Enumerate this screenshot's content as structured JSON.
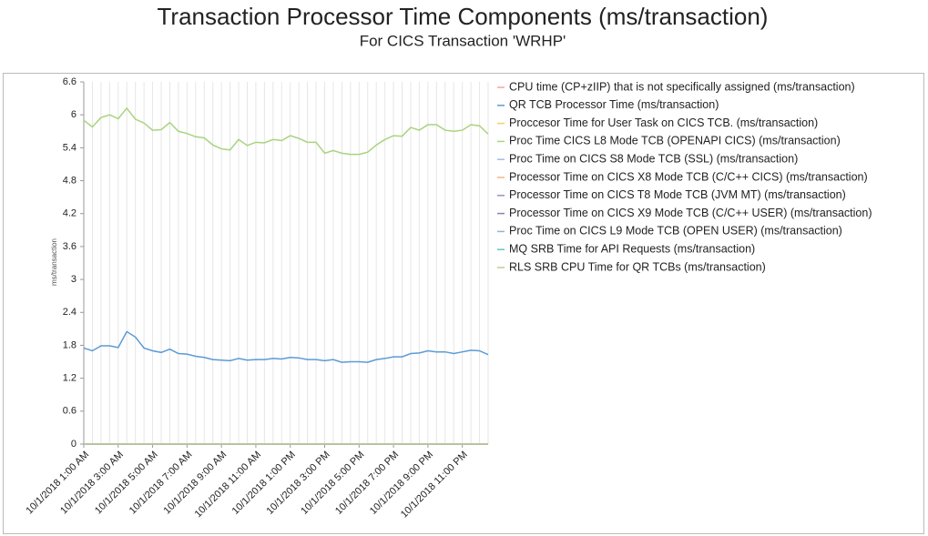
{
  "chart_data": {
    "type": "line",
    "title": "Transaction Processor Time Components (ms/transaction)",
    "subtitle": "For CICS Transaction 'WRHP'",
    "y_label": "ms/transaction",
    "categories": [
      "10/1/2018 1:00 AM",
      null,
      null,
      null,
      "10/1/2018 3:00 AM",
      null,
      null,
      null,
      "10/1/2018 5:00 AM",
      null,
      null,
      null,
      "10/1/2018 7:00 AM",
      null,
      null,
      null,
      "10/1/2018 9:00 AM",
      null,
      null,
      null,
      "10/1/2018 11:00 AM",
      null,
      null,
      null,
      "10/1/2018 1:00 PM",
      null,
      null,
      null,
      "10/1/2018 3:00 PM",
      null,
      null,
      null,
      "10/1/2018 5:00 PM",
      null,
      null,
      null,
      "10/1/2018 7:00 PM",
      null,
      null,
      null,
      "10/1/2018 9:00 PM",
      null,
      null,
      null,
      "10/1/2018 11:00 PM",
      null,
      null,
      null
    ],
    "ylim": [
      0,
      6.6
    ],
    "yticks": [
      0,
      0.6,
      1.2,
      1.8,
      2.4,
      3,
      3.6,
      4.2,
      4.8,
      5.4,
      6,
      6.6
    ],
    "grid": true,
    "legend": "right",
    "series": [
      {
        "name": "CPU time (CP+zIIP) that is not specifically assigned (ms/transaction)",
        "color": "#f2a4a4",
        "values": [
          0,
          0,
          0,
          0,
          0,
          0,
          0,
          0,
          0,
          0,
          0,
          0,
          0,
          0,
          0,
          0,
          0,
          0,
          0,
          0,
          0,
          0,
          0,
          0,
          0,
          0,
          0,
          0,
          0,
          0,
          0,
          0,
          0,
          0,
          0,
          0,
          0,
          0,
          0,
          0,
          0,
          0,
          0,
          0,
          0,
          0,
          0,
          0
        ]
      },
      {
        "name": "QR TCB Processor Time (ms/transaction)",
        "color": "#5b9bd5",
        "values": [
          1.75,
          1.7,
          1.79,
          1.79,
          1.76,
          2.05,
          1.95,
          1.75,
          1.7,
          1.67,
          1.73,
          1.65,
          1.64,
          1.6,
          1.58,
          1.54,
          1.53,
          1.52,
          1.56,
          1.53,
          1.54,
          1.54,
          1.56,
          1.55,
          1.58,
          1.57,
          1.54,
          1.54,
          1.52,
          1.54,
          1.49,
          1.5,
          1.5,
          1.49,
          1.54,
          1.56,
          1.59,
          1.59,
          1.65,
          1.66,
          1.7,
          1.68,
          1.68,
          1.65,
          1.68,
          1.71,
          1.7,
          1.63
        ]
      },
      {
        "name": "Proccesor Time for User Task on CICS TCB. (ms/transaction)",
        "color": "#f0d070",
        "values": [
          0,
          0,
          0,
          0,
          0,
          0,
          0,
          0,
          0,
          0,
          0,
          0,
          0,
          0,
          0,
          0,
          0,
          0,
          0,
          0,
          0,
          0,
          0,
          0,
          0,
          0,
          0,
          0,
          0,
          0,
          0,
          0,
          0,
          0,
          0,
          0,
          0,
          0,
          0,
          0,
          0,
          0,
          0,
          0,
          0,
          0,
          0,
          0
        ]
      },
      {
        "name": "Proc Time CICS L8 Mode TCB (OPENAPI CICS) (ms/transaction)",
        "color": "#a9d37e",
        "values": [
          5.9,
          5.78,
          5.95,
          6.0,
          5.93,
          6.12,
          5.92,
          5.85,
          5.72,
          5.73,
          5.86,
          5.7,
          5.66,
          5.6,
          5.58,
          5.45,
          5.38,
          5.36,
          5.55,
          5.44,
          5.5,
          5.49,
          5.55,
          5.53,
          5.62,
          5.57,
          5.5,
          5.5,
          5.3,
          5.35,
          5.3,
          5.28,
          5.28,
          5.32,
          5.45,
          5.55,
          5.62,
          5.61,
          5.77,
          5.72,
          5.82,
          5.82,
          5.72,
          5.7,
          5.72,
          5.82,
          5.8,
          5.65
        ]
      },
      {
        "name": "Proc Time on CICS S8 Mode TCB (SSL) (ms/transaction)",
        "color": "#a4b9e8",
        "values": [
          0,
          0,
          0,
          0,
          0,
          0,
          0,
          0,
          0,
          0,
          0,
          0,
          0,
          0,
          0,
          0,
          0,
          0,
          0,
          0,
          0,
          0,
          0,
          0,
          0,
          0,
          0,
          0,
          0,
          0,
          0,
          0,
          0,
          0,
          0,
          0,
          0,
          0,
          0,
          0,
          0,
          0,
          0,
          0,
          0,
          0,
          0,
          0
        ]
      },
      {
        "name": "Processor Time on CICS X8 Mode TCB (C/C++ CICS) (ms/transaction)",
        "color": "#f0b484",
        "values": [
          0,
          0,
          0,
          0,
          0,
          0,
          0,
          0,
          0,
          0,
          0,
          0,
          0,
          0,
          0,
          0,
          0,
          0,
          0,
          0,
          0,
          0,
          0,
          0,
          0,
          0,
          0,
          0,
          0,
          0,
          0,
          0,
          0,
          0,
          0,
          0,
          0,
          0,
          0,
          0,
          0,
          0,
          0,
          0,
          0,
          0,
          0,
          0
        ]
      },
      {
        "name": "Processor Time on CICS T8 Mode TCB (JVM MT) (ms/transaction)",
        "color": "#9494cc",
        "values": [
          0,
          0,
          0,
          0,
          0,
          0,
          0,
          0,
          0,
          0,
          0,
          0,
          0,
          0,
          0,
          0,
          0,
          0,
          0,
          0,
          0,
          0,
          0,
          0,
          0,
          0,
          0,
          0,
          0,
          0,
          0,
          0,
          0,
          0,
          0,
          0,
          0,
          0,
          0,
          0,
          0,
          0,
          0,
          0,
          0,
          0,
          0,
          0
        ]
      },
      {
        "name": "Processor Time on CICS X9 Mode TCB (C/C++ USER) (ms/transaction)",
        "color": "#8484b0",
        "values": [
          0,
          0,
          0,
          0,
          0,
          0,
          0,
          0,
          0,
          0,
          0,
          0,
          0,
          0,
          0,
          0,
          0,
          0,
          0,
          0,
          0,
          0,
          0,
          0,
          0,
          0,
          0,
          0,
          0,
          0,
          0,
          0,
          0,
          0,
          0,
          0,
          0,
          0,
          0,
          0,
          0,
          0,
          0,
          0,
          0,
          0,
          0,
          0
        ]
      },
      {
        "name": "Proc Time on CICS L9 Mode TCB (OPEN USER) (ms/transaction)",
        "color": "#94b4d4",
        "values": [
          0,
          0,
          0,
          0,
          0,
          0,
          0,
          0,
          0,
          0,
          0,
          0,
          0,
          0,
          0,
          0,
          0,
          0,
          0,
          0,
          0,
          0,
          0,
          0,
          0,
          0,
          0,
          0,
          0,
          0,
          0,
          0,
          0,
          0,
          0,
          0,
          0,
          0,
          0,
          0,
          0,
          0,
          0,
          0,
          0,
          0,
          0,
          0
        ]
      },
      {
        "name": "MQ SRB Time for API Requests (ms/transaction)",
        "color": "#64c8c0",
        "values": [
          0,
          0,
          0,
          0,
          0,
          0,
          0,
          0,
          0,
          0,
          0,
          0,
          0,
          0,
          0,
          0,
          0,
          0,
          0,
          0,
          0,
          0,
          0,
          0,
          0,
          0,
          0,
          0,
          0,
          0,
          0,
          0,
          0,
          0,
          0,
          0,
          0,
          0,
          0,
          0,
          0,
          0,
          0,
          0,
          0,
          0,
          0,
          0
        ]
      },
      {
        "name": "RLS SRB CPU Time for QR TCBs (ms/transaction)",
        "color": "#c8c894",
        "values": [
          0,
          0,
          0,
          0,
          0,
          0,
          0,
          0,
          0,
          0,
          0,
          0,
          0,
          0,
          0,
          0,
          0,
          0,
          0,
          0,
          0,
          0,
          0,
          0,
          0,
          0,
          0,
          0,
          0,
          0,
          0,
          0,
          0,
          0,
          0,
          0,
          0,
          0,
          0,
          0,
          0,
          0,
          0,
          0,
          0,
          0,
          0,
          0
        ]
      }
    ]
  }
}
